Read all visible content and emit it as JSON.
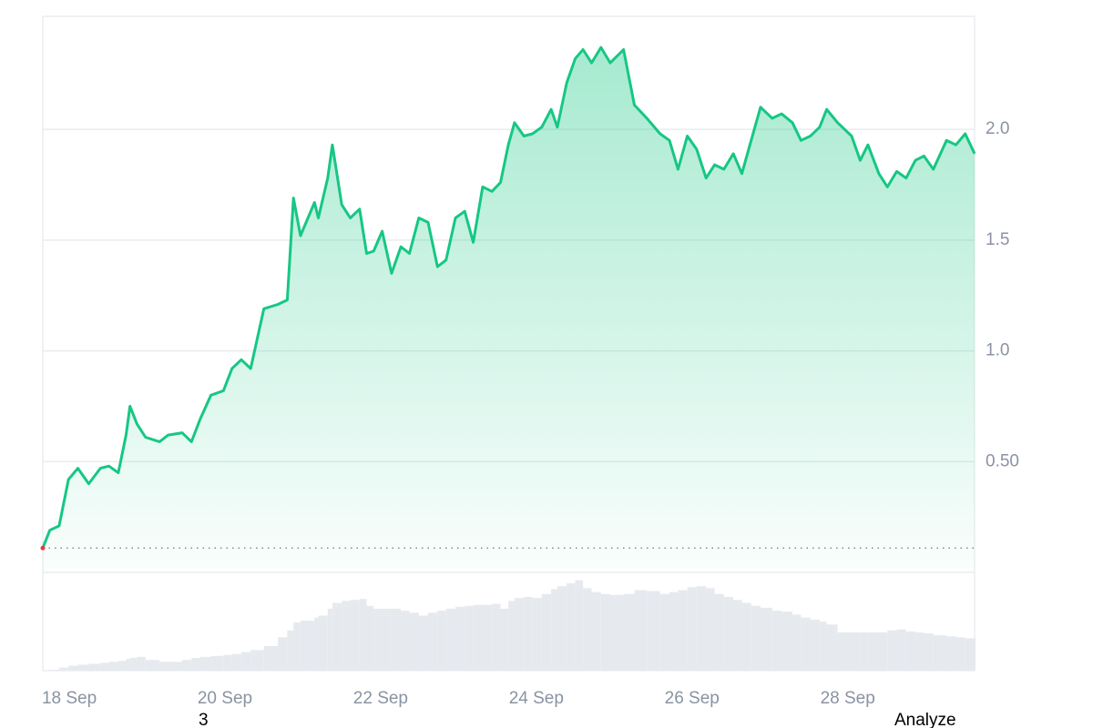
{
  "chart_data": [
    {
      "type": "area",
      "color": "#16c784",
      "x": [
        17.66,
        17.75,
        17.87,
        17.99,
        18.11,
        18.25,
        18.4,
        18.51,
        18.63,
        18.73,
        18.78,
        18.87,
        18.98,
        19.16,
        19.27,
        19.45,
        19.57,
        19.68,
        19.82,
        19.98,
        20.09,
        20.21,
        20.33,
        20.5,
        20.68,
        20.8,
        20.88,
        20.97,
        21.15,
        21.2,
        21.32,
        21.38,
        21.5,
        21.61,
        21.73,
        21.82,
        21.91,
        22.02,
        22.14,
        22.26,
        22.37,
        22.49,
        22.61,
        22.73,
        22.84,
        22.96,
        23.08,
        23.19,
        23.31,
        23.43,
        23.54,
        23.64,
        23.72,
        23.84,
        23.95,
        24.07,
        24.19,
        24.27,
        24.39,
        24.5,
        24.6,
        24.71,
        24.83,
        24.95,
        25.12,
        25.26,
        25.42,
        25.59,
        25.71,
        25.82,
        25.94,
        26.06,
        26.18,
        26.29,
        26.41,
        26.53,
        26.64,
        26.76,
        26.88,
        27.03,
        27.15,
        27.29,
        27.4,
        27.52,
        27.64,
        27.73,
        27.87,
        28.05,
        28.16,
        28.26,
        28.4,
        28.51,
        28.63,
        28.75,
        28.87,
        28.98,
        29.1,
        29.27,
        29.39,
        29.51,
        29.63
      ],
      "values": [
        0.11,
        0.19,
        0.21,
        0.42,
        0.47,
        0.4,
        0.47,
        0.48,
        0.45,
        0.62,
        0.75,
        0.67,
        0.61,
        0.59,
        0.62,
        0.63,
        0.59,
        0.69,
        0.8,
        0.82,
        0.92,
        0.96,
        0.92,
        1.19,
        1.21,
        1.23,
        1.69,
        1.52,
        1.67,
        1.6,
        1.78,
        1.93,
        1.66,
        1.6,
        1.64,
        1.44,
        1.45,
        1.54,
        1.35,
        1.47,
        1.44,
        1.6,
        1.58,
        1.38,
        1.41,
        1.6,
        1.63,
        1.49,
        1.74,
        1.72,
        1.76,
        1.93,
        2.03,
        1.97,
        1.98,
        2.01,
        2.09,
        2.01,
        2.21,
        2.32,
        2.36,
        2.3,
        2.37,
        2.3,
        2.36,
        2.11,
        2.05,
        1.98,
        1.95,
        1.82,
        1.97,
        1.91,
        1.78,
        1.84,
        1.82,
        1.89,
        1.8,
        1.95,
        2.1,
        2.05,
        2.07,
        2.03,
        1.95,
        1.97,
        2.01,
        2.09,
        2.03,
        1.97,
        1.86,
        1.93,
        1.8,
        1.74,
        1.81,
        1.78,
        1.86,
        1.88,
        1.82,
        1.95,
        1.93,
        1.98,
        1.89
      ],
      "xlim": [
        17.66,
        29.63
      ],
      "xticks": [
        {
          "value": 18,
          "label": "18 Sep"
        },
        {
          "value": 20,
          "label": "20 Sep"
        },
        {
          "value": 22,
          "label": "22 Sep"
        },
        {
          "value": 24,
          "label": "24 Sep"
        },
        {
          "value": 26,
          "label": "26 Sep"
        },
        {
          "value": 28,
          "label": "28 Sep"
        }
      ],
      "ylim": [
        0,
        2.51
      ],
      "yticks": [
        {
          "value": 0.5,
          "label": "0.50"
        },
        {
          "value": 1,
          "label": "1.0"
        },
        {
          "value": 1.5,
          "label": "1.5"
        },
        {
          "value": 2,
          "label": "2.0"
        }
      ],
      "grid": true
    },
    {
      "type": "bar",
      "color": "#e6eaef",
      "x": [
        17.66,
        17.75,
        17.87,
        17.99,
        18.11,
        18.25,
        18.4,
        18.51,
        18.63,
        18.73,
        18.78,
        18.87,
        18.98,
        19.16,
        19.27,
        19.45,
        19.57,
        19.68,
        19.82,
        19.98,
        20.09,
        20.21,
        20.33,
        20.5,
        20.68,
        20.8,
        20.88,
        20.97,
        21.15,
        21.2,
        21.32,
        21.38,
        21.5,
        21.61,
        21.73,
        21.82,
        21.91,
        22.02,
        22.14,
        22.26,
        22.37,
        22.49,
        22.61,
        22.73,
        22.84,
        22.96,
        23.08,
        23.19,
        23.31,
        23.43,
        23.54,
        23.64,
        23.72,
        23.84,
        23.95,
        24.07,
        24.19,
        24.27,
        24.39,
        24.5,
        24.6,
        24.71,
        24.83,
        24.95,
        25.12,
        25.26,
        25.42,
        25.59,
        25.71,
        25.82,
        25.94,
        26.06,
        26.18,
        26.29,
        26.41,
        26.53,
        26.64,
        26.76,
        26.88,
        27.03,
        27.15,
        27.29,
        27.4,
        27.52,
        27.64,
        27.73,
        27.87,
        28.05,
        28.16,
        28.26,
        28.4,
        28.51,
        28.63,
        28.75,
        28.87,
        28.98,
        29.1,
        29.27,
        29.39,
        29.51,
        29.63
      ],
      "values": [
        0,
        1,
        3,
        5,
        6,
        7,
        8,
        9,
        10,
        12,
        13,
        14,
        11,
        9,
        9,
        11,
        13,
        14,
        15,
        16,
        17,
        19,
        21,
        25,
        34,
        41,
        49,
        51,
        54,
        56,
        63,
        69,
        71,
        72,
        73,
        66,
        63,
        63,
        63,
        61,
        59,
        56,
        59,
        61,
        63,
        65,
        66,
        67,
        67,
        68,
        63,
        71,
        74,
        75,
        74,
        78,
        83,
        86,
        89,
        92,
        84,
        80,
        78,
        77,
        78,
        82,
        81,
        78,
        80,
        82,
        85,
        86,
        84,
        78,
        75,
        72,
        69,
        66,
        64,
        61,
        60,
        57,
        54,
        52,
        50,
        47,
        39,
        39,
        39,
        39,
        39,
        41,
        42,
        40,
        39,
        38,
        36,
        35,
        34,
        33,
        34
      ],
      "xlim": [
        17.66,
        29.63
      ],
      "ylim": [
        0,
        100
      ]
    }
  ],
  "footer": {
    "left": "3",
    "right": "Analyze"
  }
}
